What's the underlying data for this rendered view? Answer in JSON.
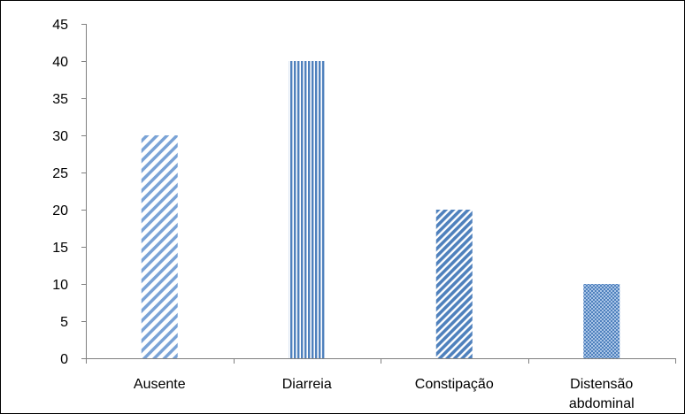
{
  "chart_data": {
    "type": "bar",
    "title": "",
    "xlabel": "",
    "ylabel": "",
    "categories": [
      "Ausente",
      "Diarreia",
      "Constipação",
      "Distensão abdominal"
    ],
    "category_lines": [
      [
        "Ausente"
      ],
      [
        "Diarreia"
      ],
      [
        "Constipação"
      ],
      [
        "Distensão",
        "abdominal"
      ]
    ],
    "values": [
      30,
      40,
      20,
      10
    ],
    "ylim": [
      0,
      45
    ],
    "yticks": [
      0,
      5,
      10,
      15,
      20,
      25,
      30,
      35,
      40,
      45
    ],
    "grid": false,
    "legend": "none",
    "bar_patterns": [
      "wide-downward-diagonal",
      "vertical-stripes",
      "dark-downward-diagonal",
      "checker"
    ],
    "colors": {
      "bar": "#4f81bd",
      "bar_light": "#9bbbe0",
      "axis": "#808080",
      "frame": "#000000",
      "text": "#000000"
    }
  }
}
